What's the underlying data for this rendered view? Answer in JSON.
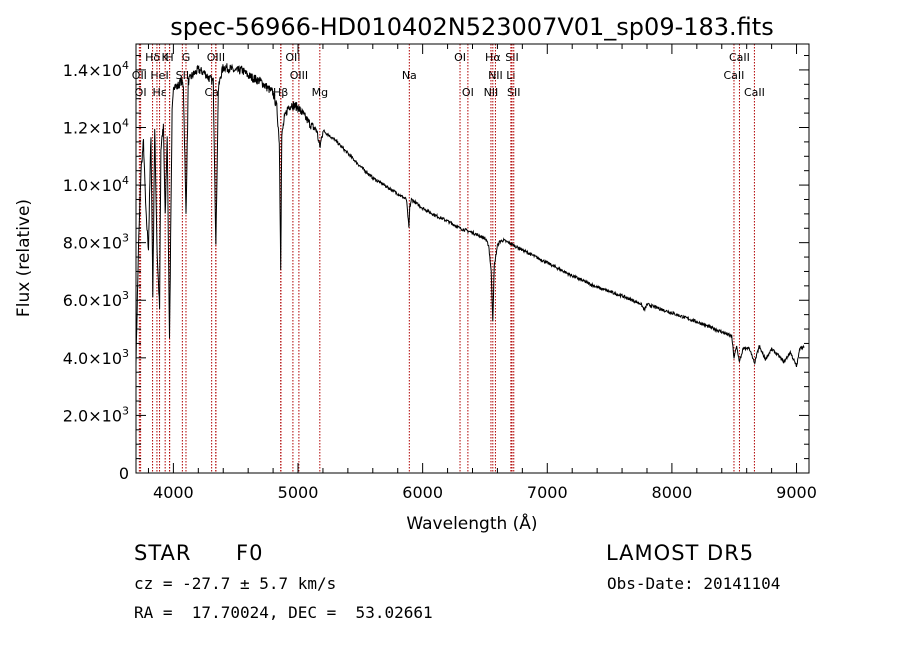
{
  "chart_data": {
    "type": "line",
    "title": "spec-56966-HD010402N523007V01_sp09-183.fits",
    "xlabel": "Wavelength (Å)",
    "ylabel": "Flux (relative)",
    "xlim": [
      3700,
      9100
    ],
    "ylim": [
      0,
      14900
    ],
    "grid": false,
    "x_ticks": [
      {
        "value": 4000,
        "label": "4000"
      },
      {
        "value": 5000,
        "label": "5000"
      },
      {
        "value": 6000,
        "label": "6000"
      },
      {
        "value": 7000,
        "label": "7000"
      },
      {
        "value": 8000,
        "label": "8000"
      },
      {
        "value": 9000,
        "label": "9000"
      }
    ],
    "y_ticks": [
      {
        "value": 0,
        "mantissa": "0",
        "exp": ""
      },
      {
        "value": 2000,
        "mantissa": "2.0×10",
        "exp": "3"
      },
      {
        "value": 4000,
        "mantissa": "4.0×10",
        "exp": "3"
      },
      {
        "value": 6000,
        "mantissa": "6.0×10",
        "exp": "3"
      },
      {
        "value": 8000,
        "mantissa": "8.0×10",
        "exp": "3"
      },
      {
        "value": 10000,
        "mantissa": "1.0×10",
        "exp": "4"
      },
      {
        "value": 12000,
        "mantissa": "1.2×10",
        "exp": "4"
      },
      {
        "value": 14000,
        "mantissa": "1.4×10",
        "exp": "4"
      }
    ],
    "line_markers": [
      {
        "label": "Hδ",
        "wavelength": 3833,
        "row": 0
      },
      {
        "label": "K",
        "wavelength": 3934,
        "row": 0
      },
      {
        "label": "H",
        "wavelength": 3969,
        "row": 0
      },
      {
        "label": "G",
        "wavelength": 4101,
        "row": 0
      },
      {
        "label": "OIII",
        "wavelength": 4341,
        "row": 0
      },
      {
        "label": "OII",
        "wavelength": 4959,
        "row": 0
      },
      {
        "label": "OI",
        "wavelength": 6300,
        "row": 0
      },
      {
        "label": "Hα",
        "wavelength": 6563,
        "row": 0
      },
      {
        "label": "SII",
        "wavelength": 6717,
        "row": 0
      },
      {
        "label": "CaII",
        "wavelength": 8542,
        "row": 0
      },
      {
        "label": "OII",
        "wavelength": 3727,
        "row": 1
      },
      {
        "label": "HeI",
        "wavelength": 3889,
        "row": 1
      },
      {
        "label": "SII",
        "wavelength": 4072,
        "row": 1
      },
      {
        "label": "OIII",
        "wavelength": 5007,
        "row": 1
      },
      {
        "label": "Na",
        "wavelength": 5893,
        "row": 1
      },
      {
        "label": "NII",
        "wavelength": 6584,
        "row": 1
      },
      {
        "label": "Li",
        "wavelength": 6708,
        "row": 1
      },
      {
        "label": "CaII",
        "wavelength": 8498,
        "row": 1
      },
      {
        "label": "OI",
        "wavelength": 3737,
        "row": 2
      },
      {
        "label": "Hε",
        "wavelength": 3889,
        "row": 2
      },
      {
        "label": "Ca",
        "wavelength": 4307,
        "row": 2
      },
      {
        "label": "Hβ",
        "wavelength": 4861,
        "row": 2
      },
      {
        "label": "Mg",
        "wavelength": 5175,
        "row": 2
      },
      {
        "label": "OI",
        "wavelength": 6363,
        "row": 2
      },
      {
        "label": "NII",
        "wavelength": 6548,
        "row": 2
      },
      {
        "label": "SII",
        "wavelength": 6731,
        "row": 2
      },
      {
        "label": "CaII",
        "wavelength": 8662,
        "row": 2
      }
    ],
    "extra_marker_wavelengths": [
      3868,
      3970,
      4340,
      4863,
      6716
    ],
    "series": [
      {
        "x": [
          3700,
          3720,
          3740,
          3760,
          3780,
          3800,
          3820,
          3835,
          3850,
          3870,
          3889,
          3900,
          3920,
          3934,
          3950,
          3969,
          3990,
          4000,
          4030,
          4060,
          4080,
          4101,
          4120,
          4150,
          4200,
          4250,
          4290,
          4320,
          4341,
          4360,
          4380,
          4400,
          4450,
          4500,
          4550,
          4600,
          4650,
          4700,
          4750,
          4800,
          4830,
          4850,
          4861,
          4870,
          4890,
          4920,
          4950,
          5000,
          5050,
          5100,
          5150,
          5175,
          5200,
          5300,
          5400,
          5500,
          5600,
          5700,
          5800,
          5870,
          5890,
          5896,
          5910,
          6000,
          6100,
          6200,
          6300,
          6400,
          6500,
          6530,
          6550,
          6563,
          6575,
          6600,
          6620,
          6650,
          6700,
          6800,
          6900,
          7000,
          7200,
          7400,
          7600,
          7750,
          7780,
          7800,
          8000,
          8200,
          8400,
          8480,
          8498,
          8520,
          8542,
          8570,
          8620,
          8662,
          8700,
          8750,
          8800,
          8850,
          8900,
          8950,
          9000,
          9030,
          9060
        ],
        "y": [
          3900,
          7800,
          10500,
          11500,
          9000,
          7800,
          11800,
          6200,
          11900,
          7600,
          5700,
          11200,
          12100,
          8900,
          11800,
          4700,
          12500,
          13500,
          13400,
          13600,
          13500,
          9000,
          13600,
          13800,
          14000,
          13900,
          13700,
          13600,
          7900,
          13300,
          13800,
          14100,
          14050,
          13950,
          14000,
          13800,
          13700,
          13600,
          13400,
          13200,
          12700,
          11500,
          7200,
          11700,
          12300,
          12700,
          12800,
          12700,
          12400,
          12100,
          11900,
          11300,
          11900,
          11550,
          11100,
          10650,
          10250,
          9980,
          9700,
          9500,
          8500,
          9200,
          9500,
          9200,
          8950,
          8750,
          8500,
          8350,
          8150,
          7900,
          7000,
          5300,
          7200,
          7900,
          8050,
          8080,
          7980,
          7750,
          7520,
          7300,
          6850,
          6450,
          6150,
          5880,
          5650,
          5860,
          5560,
          5250,
          4900,
          4750,
          4000,
          4400,
          3850,
          4300,
          4350,
          3800,
          4400,
          3950,
          4300,
          4100,
          3850,
          4200,
          3700,
          4400,
          4350
        ]
      }
    ]
  },
  "footer": {
    "object_type": "STAR",
    "spectral_class": "F0",
    "survey": "LAMOST DR5",
    "velocity": "cz = -27.7 ± 5.7 km/s",
    "obs_date": "Obs-Date: 20141104",
    "coordinates": "RA =  17.70024, DEC =  53.02661"
  }
}
